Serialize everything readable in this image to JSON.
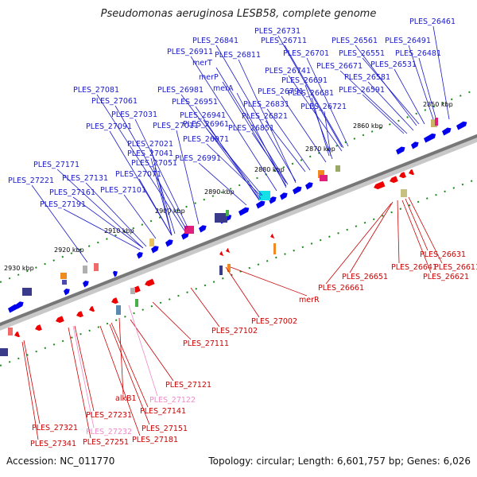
{
  "header": {
    "title": "Pseudomonas aeruginosa LESB58, complete genome"
  },
  "footer": {
    "accession": "Accession: NC_011770",
    "topology": "Topology: circular; Length: 6,601,757 bp; Genes: 6,026"
  },
  "ticks": [
    "2850 kbp",
    "2860 kbp",
    "2870 kbp",
    "2880 kbp",
    "2890 kbp",
    "2900 kbp",
    "2910 kbp",
    "2920 kbp",
    "2930 kbp"
  ],
  "forward_labels": [
    "PLES_26461",
    "PLES_26731",
    "PLES_26841",
    "PLES_26711",
    "PLES_26561",
    "PLES_26491",
    "PLES_26911",
    "PLES_26811",
    "PLES_26701",
    "PLES_26551",
    "PLES_26481",
    "merT",
    "PLES_26671",
    "PLES_26531",
    "merP",
    "PLES_26741",
    "PLES_26581",
    "PLES_27081",
    "merA",
    "PLES_26691",
    "PLES_27061",
    "PLES_26981",
    "PLES_26791",
    "PLES_26681",
    "PLES_26591",
    "PLES_26951",
    "PLES_26831",
    "PLES_26721",
    "PLES_27031",
    "PLES_26941",
    "PLES_26821",
    "PLES_27091",
    "PLES_27011",
    "PLES_26961",
    "PLES_26851",
    "PLES_26971",
    "PLES_27021",
    "PLES_27041",
    "PLES_26991",
    "PLES_27051",
    "PLES_27171",
    "PLES_27131",
    "PLES_27071",
    "PLES_27221",
    "PLES_27101",
    "PLES_27161",
    "PLES_27191"
  ],
  "reverse_labels": [
    "PLES_26631",
    "PLES_26611",
    "PLES_26641",
    "PLES_26621",
    "PLES_26651",
    "PLES_26661",
    "merR",
    "PLES_27002",
    "PLES_27102",
    "PLES_27111",
    "PLES_27121",
    "alkB1",
    "PLES_27141",
    "PLES_27231",
    "PLES_27151",
    "PLES_27321",
    "PLES_27181",
    "PLES_27341",
    "PLES_27251"
  ],
  "pseudo_labels": [
    "PLES_27122",
    "PLES_27232"
  ],
  "colors": {
    "forward": "#0000ee",
    "reverse": "#ee0000",
    "backbone": "#888888",
    "tick_mark": "#1a8a1a",
    "pseudo": "#f08ac8"
  }
}
